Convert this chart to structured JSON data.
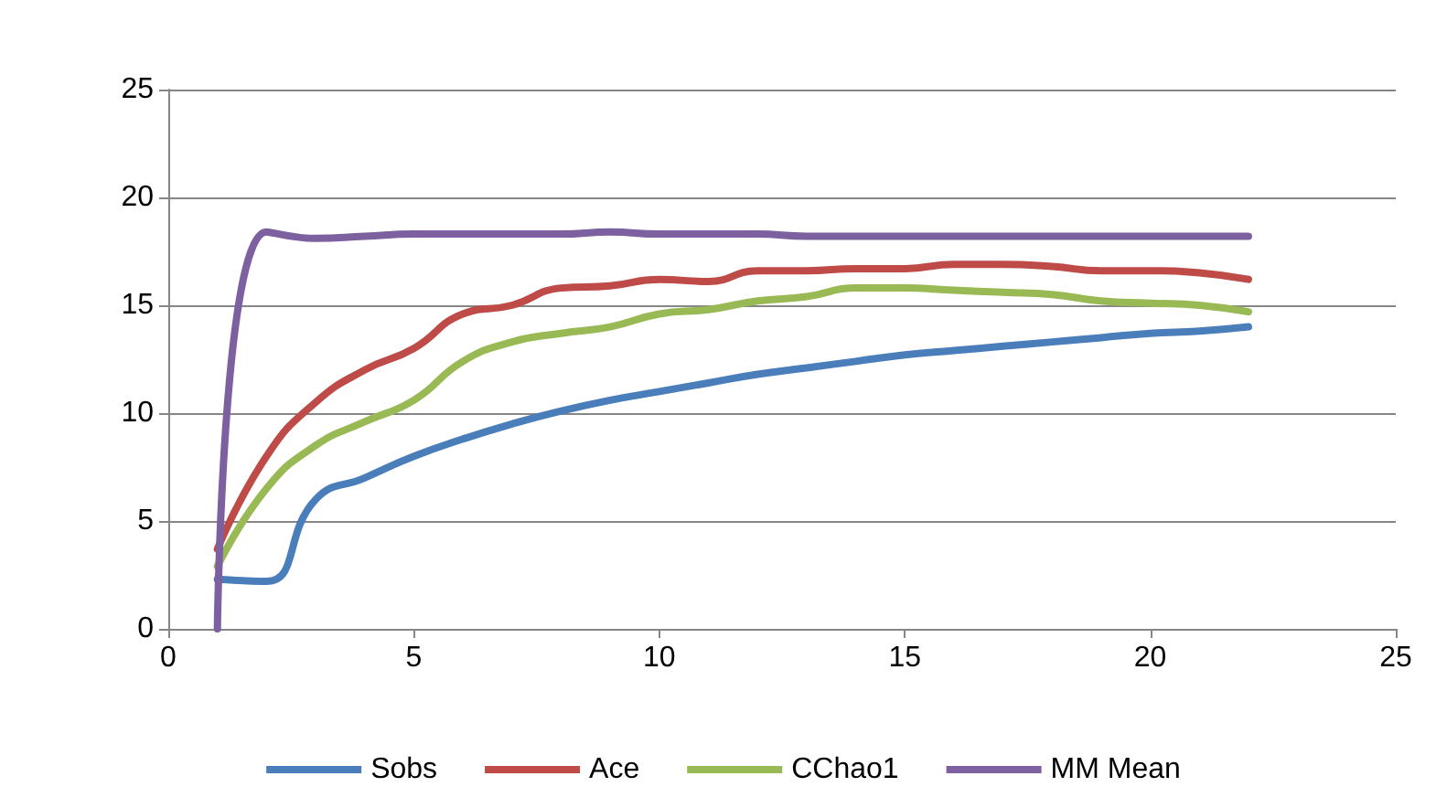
{
  "chart_data": {
    "type": "line",
    "x": [
      1,
      2,
      3,
      4,
      5,
      6,
      7,
      8,
      9,
      10,
      11,
      12,
      13,
      14,
      15,
      16,
      17,
      18,
      19,
      20,
      21,
      22
    ],
    "series": [
      {
        "name": "Sobs",
        "color": "#4a7ebb",
        "values": [
          2.3,
          2.2,
          6,
          7,
          8,
          8.8,
          9.5,
          10.1,
          10.6,
          11,
          11.4,
          11.8,
          12.1,
          12.4,
          12.7,
          12.9,
          13.1,
          13.3,
          13.5,
          13.7,
          13.8,
          14
        ]
      },
      {
        "name": "Ace",
        "color": "#be4b48",
        "values": [
          3.7,
          8,
          10.5,
          12,
          13,
          14.6,
          15,
          15.8,
          15.9,
          16.2,
          16.1,
          16.6,
          16.6,
          16.7,
          16.7,
          16.9,
          16.9,
          16.8,
          16.6,
          16.6,
          16.5,
          16.2
        ]
      },
      {
        "name": "CChao1",
        "color": "#98b954",
        "values": [
          2.9,
          6.5,
          8.5,
          9.6,
          10.6,
          12.4,
          13.3,
          13.7,
          14,
          14.6,
          14.8,
          15.2,
          15.4,
          15.8,
          15.8,
          15.7,
          15.6,
          15.5,
          15.2,
          15.1,
          15,
          14.7
        ]
      },
      {
        "name": "MM Mean",
        "color": "#7d60a0",
        "values": [
          0,
          18.4,
          18.1,
          18.2,
          18.3,
          18.3,
          18.3,
          18.3,
          18.4,
          18.3,
          18.3,
          18.3,
          18.2,
          18.2,
          18.2,
          18.2,
          18.2,
          18.2,
          18.2,
          18.2,
          18.2,
          18.2
        ]
      }
    ],
    "xlim": [
      0,
      25
    ],
    "xticks": [
      0,
      5,
      10,
      15,
      20,
      25
    ],
    "ylim": [
      0,
      25
    ],
    "yticks": [
      0,
      5,
      10,
      15,
      20,
      25
    ],
    "grid": "y",
    "legend": "bottom",
    "marker": "none",
    "line_style": "solid"
  }
}
